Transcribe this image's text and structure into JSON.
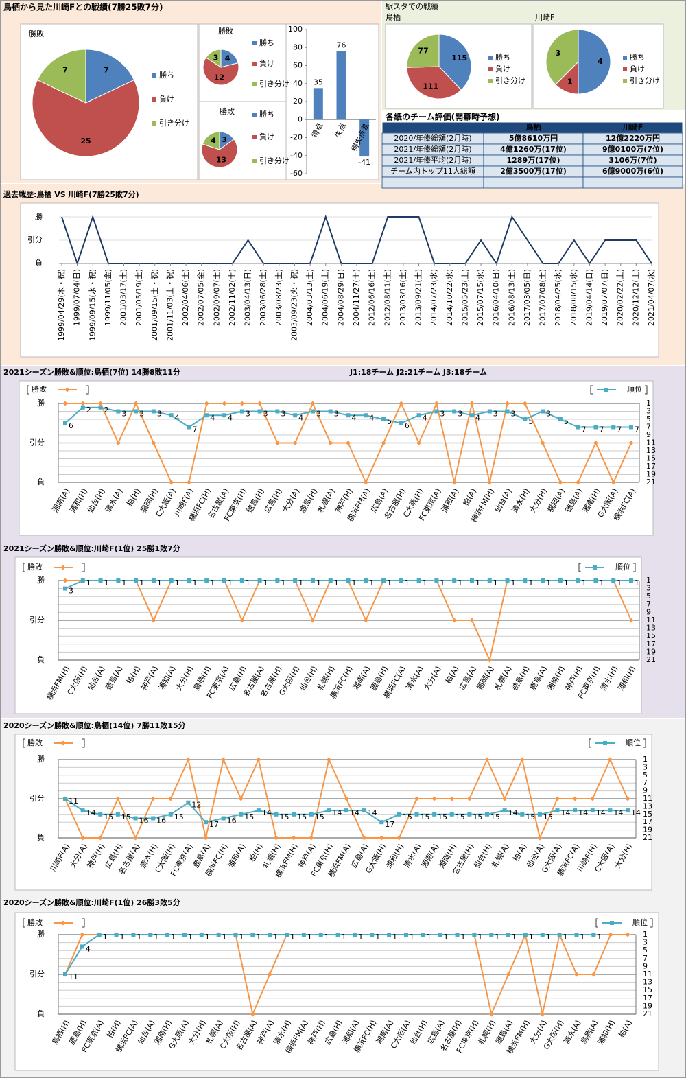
{
  "panels": {
    "head_to_head": "鳥栖から見た川崎Fとの戦績(7勝25敗7分)",
    "stadium": "駅スタでの戦績"
  },
  "table": {
    "title": "各紙のチーム評価(開幕時予想)",
    "header": [
      "鳥栖",
      "川崎F"
    ],
    "rows": [
      [
        "2020/年俸総額(2月時)",
        "5億8610万円",
        "12億2220万円"
      ],
      [
        "2021/年俸総額(2月時)",
        "4億1260万(17位)",
        "9億0100万(7位)"
      ],
      [
        "2021/年俸平均(2月時)",
        "1289万(17位)",
        "3106万(7位)"
      ],
      [
        "チーム内トップ11人総額",
        "2億3500万(17位)",
        "6億9000万(6位)"
      ]
    ]
  },
  "chart_data": [
    {
      "type": "pie",
      "title": "勝敗",
      "categories": [
        "勝ち",
        "負け",
        "引き分け"
      ],
      "values": [
        7,
        25,
        7
      ],
      "colors": [
        "#4f81bd",
        "#c0504d",
        "#9bbb59"
      ]
    },
    {
      "type": "pie",
      "title": "勝敗",
      "categories": [
        "勝ち",
        "負け",
        "引き分け"
      ],
      "values": [
        4,
        12,
        3
      ],
      "colors": [
        "#4f81bd",
        "#c0504d",
        "#9bbb59"
      ]
    },
    {
      "type": "pie",
      "title": "勝敗",
      "categories": [
        "勝ち",
        "負け",
        "引き分け"
      ],
      "values": [
        3,
        13,
        4
      ],
      "colors": [
        "#4f81bd",
        "#c0504d",
        "#9bbb59"
      ]
    },
    {
      "type": "bar",
      "categories": [
        "得点",
        "失点",
        "得失点差"
      ],
      "values": [
        35,
        76,
        -41
      ],
      "color": "#4f81bd",
      "ylim": [
        -60,
        100
      ],
      "yticks": [
        -60,
        -40,
        -20,
        0,
        20,
        40,
        60,
        80,
        100
      ]
    },
    {
      "type": "pie",
      "title": "鳥栖",
      "categories": [
        "勝ち",
        "負け",
        "引き分け"
      ],
      "values": [
        115,
        111,
        77
      ],
      "colors": [
        "#4f81bd",
        "#c0504d",
        "#9bbb59"
      ]
    },
    {
      "type": "pie",
      "title": "川崎F",
      "categories": [
        "勝ち",
        "負け",
        "引き分け"
      ],
      "values": [
        4,
        1,
        3
      ],
      "colors": [
        "#4f81bd",
        "#c0504d",
        "#9bbb59"
      ]
    },
    {
      "type": "line",
      "title": "過去戦歴:鳥栖 VS 川崎F(7勝25敗7分)",
      "categories": [
        "1999/04/29(木・祝)",
        "1999/07/04(日)",
        "1999/09/15(水・祝)",
        "1999/11/05(金)",
        "2001/03/17(土)",
        "2001/05/19(土)",
        "2001/09/15(土・祝)",
        "2001/11/03(土・祝)",
        "2002/04/06(土)",
        "2002/07/05(金)",
        "2002/09/07(土)",
        "2002/11/02(土)",
        "2003/04/13(日)",
        "2003/06/28(土)",
        "2003/08/23(土)",
        "2003/09/23(火・祝)",
        "2004/03/13(土)",
        "2004/06/19(土)",
        "2004/08/29(日)",
        "2004/11/27(土)",
        "2012/06/16(土)",
        "2012/08/11(土)",
        "2013/03/16(土)",
        "2013/09/21(土)",
        "2014/07/23(水)",
        "2014/10/22(水)",
        "2015/05/23(土)",
        "2015/07/15(水)",
        "2016/04/10(日)",
        "2016/08/13(土)",
        "2017/03/05(日)",
        "2017/07/08(土)",
        "2018/04/25(水)",
        "2018/08/15(水)",
        "2019/04/14(日)",
        "2019/07/07(日)",
        "2020/02/22(土)",
        "2020/12/12(土)",
        "2021/04/07(水)"
      ],
      "ylim": [
        0,
        2
      ],
      "yticks": [
        {
          "value": 0,
          "label": "負"
        },
        {
          "value": 1,
          "label": "引分"
        },
        {
          "value": 2,
          "label": "勝"
        }
      ],
      "color": "#1f3b63",
      "values": [
        2,
        0,
        2,
        0,
        0,
        0,
        0,
        0,
        0,
        0,
        0,
        0,
        1,
        0,
        0,
        0,
        0,
        2,
        0,
        0,
        0,
        2,
        2,
        2,
        0,
        0,
        0,
        1,
        0,
        2,
        1,
        0,
        0,
        1,
        0,
        1,
        1,
        1,
        0
      ]
    },
    {
      "type": "combo",
      "title": "2021シーズン勝敗&順位:鳥栖(7位) 14勝8敗11分",
      "subtitle": "J1:18チーム J2:21チーム J3:18チーム",
      "categories": [
        "湘南(A)",
        "浦和(H)",
        "仙台(H)",
        "清水(A)",
        "柏(H)",
        "福岡(H)",
        "C大阪(A)",
        "川崎F(A)",
        "横浜FC(H)",
        "名古屋(A)",
        "FC東京(H)",
        "徳島(H)",
        "広島(H)",
        "大分(A)",
        "鹿島(H)",
        "札幌(A)",
        "神戸(H)",
        "横浜FM(A)",
        "広島(A)",
        "名古屋(H)",
        "C大阪(H)",
        "FC東京(A)",
        "浦和(A)",
        "柏(A)",
        "横浜FM(H)",
        "仙台(A)",
        "清水(H)",
        "大分(H)",
        "福岡(A)",
        "徳島(A)",
        "湘南(H)",
        "G大阪(A)",
        "横浜FC(A)"
      ],
      "ylim": [
        0,
        2
      ],
      "yticks": [
        {
          "value": 0,
          "label": "負"
        },
        {
          "value": 1,
          "label": "引分"
        },
        {
          "value": 2,
          "label": "勝"
        }
      ],
      "y2lim": [
        21,
        1
      ],
      "y2ticks": [
        1,
        3,
        5,
        7,
        9,
        11,
        13,
        15,
        17,
        19,
        21
      ],
      "series": [
        {
          "name": "勝敗",
          "color": "#f79646",
          "values": [
            2,
            2,
            2,
            1,
            2,
            1,
            0,
            0,
            2,
            2,
            2,
            2,
            1,
            1,
            2,
            1,
            1,
            0,
            1,
            2,
            1,
            2,
            0,
            2,
            0,
            2,
            2,
            1,
            0,
            0,
            1,
            0,
            1
          ]
        },
        {
          "name": "順位",
          "color": "#4bacc6",
          "axis": "y2",
          "values": [
            6,
            2,
            2,
            3,
            3,
            3,
            4,
            7,
            4,
            4,
            3,
            3,
            3,
            4,
            3,
            3,
            4,
            4,
            5,
            6,
            4,
            3,
            3,
            4,
            3,
            3,
            5,
            3,
            5,
            7,
            7,
            7,
            7
          ]
        }
      ]
    },
    {
      "type": "combo",
      "title": "2021シーズン勝敗&順位:川崎F(1位) 25勝1敗7分",
      "categories": [
        "横浜FM(H)",
        "C大阪(H)",
        "仙台(A)",
        "徳島(A)",
        "柏(H)",
        "神戸(A)",
        "浦和(A)",
        "大分(H)",
        "鳥栖(H)",
        "FC東京(A)",
        "広島(H)",
        "名古屋(A)",
        "名古屋(H)",
        "G大阪(H)",
        "仙台(H)",
        "札幌(H)",
        "横浜FC(H)",
        "湘南(A)",
        "鹿島(H)",
        "横浜FC(A)",
        "清水(A)",
        "大分(A)",
        "柏(A)",
        "広島(A)",
        "福岡(A)",
        "札幌(A)",
        "徳島(H)",
        "鹿島(A)",
        "湘南(H)",
        "神戸(H)",
        "FC東京(H)",
        "清水(H)",
        "浦和(H)"
      ],
      "ylim": [
        0,
        2
      ],
      "yticks": [
        {
          "value": 0,
          "label": "負"
        },
        {
          "value": 1,
          "label": "引分"
        },
        {
          "value": 2,
          "label": "勝"
        }
      ],
      "y2lim": [
        21,
        1
      ],
      "y2ticks": [
        1,
        3,
        5,
        7,
        9,
        11,
        13,
        15,
        17,
        19,
        21
      ],
      "series": [
        {
          "name": "勝敗",
          "color": "#f79646",
          "values": [
            2,
            2,
            2,
            2,
            2,
            1,
            2,
            2,
            2,
            2,
            1,
            2,
            2,
            2,
            1,
            2,
            2,
            1,
            2,
            2,
            2,
            2,
            1,
            1,
            0,
            2,
            2,
            2,
            2,
            2,
            2,
            2,
            1
          ]
        },
        {
          "name": "順位",
          "color": "#4bacc6",
          "axis": "y2",
          "values": [
            3,
            1,
            1,
            1,
            1,
            1,
            1,
            1,
            1,
            1,
            1,
            1,
            1,
            1,
            1,
            1,
            1,
            1,
            1,
            1,
            1,
            1,
            1,
            1,
            1,
            1,
            1,
            1,
            1,
            1,
            1,
            1,
            1
          ]
        }
      ]
    },
    {
      "type": "combo",
      "title": "2020シーズン勝敗&順位:鳥栖(14位) 7勝11敗15分",
      "categories": [
        "川崎F(A)",
        "大分(A)",
        "神戸(H)",
        "広島(H)",
        "名古屋(A)",
        "清水(H)",
        "C大阪(H)",
        "FC東京(A)",
        "鹿島(A)",
        "横浜FC(H)",
        "浦和(A)",
        "柏(H)",
        "札幌(H)",
        "横浜FM(H)",
        "神戸(A)",
        "FC東京(H)",
        "横浜FM(A)",
        "広島(A)",
        "G大阪(H)",
        "浦和(H)",
        "清水(A)",
        "湘南(A)",
        "湘南(H)",
        "名古屋(H)",
        "仙台(H)",
        "札幌(A)",
        "柏(A)",
        "仙台(A)",
        "G大阪(A)",
        "横浜FC(A)",
        "川崎F(H)",
        "C大阪(A)",
        "大分(H)"
      ],
      "ylim": [
        0,
        2
      ],
      "yticks": [
        {
          "value": 0,
          "label": "負"
        },
        {
          "value": 1,
          "label": "引分"
        },
        {
          "value": 2,
          "label": "勝"
        }
      ],
      "y2lim": [
        21,
        1
      ],
      "y2ticks": [
        1,
        3,
        5,
        7,
        9,
        11,
        13,
        15,
        17,
        19,
        21
      ],
      "series": [
        {
          "name": "勝敗",
          "color": "#f79646",
          "values": [
            1,
            0,
            0,
            1,
            0,
            1,
            1,
            2,
            0,
            2,
            1,
            2,
            0,
            0,
            0,
            2,
            1,
            0,
            0,
            0,
            1,
            1,
            1,
            1,
            2,
            1,
            2,
            0,
            1,
            1,
            1,
            2,
            1
          ]
        },
        {
          "name": "順位",
          "color": "#4bacc6",
          "axis": "y2",
          "values": [
            11,
            14,
            15,
            15,
            16,
            16,
            15,
            12,
            17,
            16,
            15,
            14,
            15,
            15,
            15,
            14,
            14,
            14,
            17,
            15,
            15,
            15,
            15,
            15,
            15,
            14,
            15,
            15,
            14,
            14,
            14,
            14,
            14
          ]
        }
      ]
    },
    {
      "type": "combo",
      "title": "2020シーズン勝敗&順位:川崎F(1位) 26勝3敗5分",
      "categories": [
        "鳥栖(H)",
        "鹿島(H)",
        "FC東京(A)",
        "柏(H)",
        "横浜FC(A)",
        "仙台(A)",
        "湘南(H)",
        "G大阪(A)",
        "大分(H)",
        "札幌(A)",
        "C大阪(H)",
        "名古屋(A)",
        "神戸(A)",
        "清水(H)",
        "横浜FM(A)",
        "神戸(H)",
        "広島(H)",
        "浦和(A)",
        "横浜FC(H)",
        "湘南(A)",
        "C大阪(A)",
        "仙台(H)",
        "広島(A)",
        "名古屋(H)",
        "FC東京(H)",
        "札幌(H)",
        "鹿島(A)",
        "横浜FM(H)",
        "大分(A)",
        "G大阪(H)",
        "清水(A)",
        "鳥栖(A)",
        "浦和(H)",
        "柏(A)"
      ],
      "ylim": [
        0,
        2
      ],
      "yticks": [
        {
          "value": 0,
          "label": "負"
        },
        {
          "value": 1,
          "label": "引分"
        },
        {
          "value": 2,
          "label": "勝"
        }
      ],
      "y2lim": [
        21,
        1
      ],
      "y2ticks": [
        1,
        3,
        5,
        7,
        9,
        11,
        13,
        15,
        17,
        19,
        21
      ],
      "series": [
        {
          "name": "勝敗",
          "color": "#f79646",
          "values": [
            1,
            2,
            2,
            2,
            2,
            2,
            2,
            2,
            2,
            2,
            2,
            0,
            1,
            2,
            2,
            2,
            2,
            2,
            2,
            2,
            2,
            2,
            2,
            2,
            2,
            0,
            1,
            2,
            0,
            2,
            1,
            1,
            2,
            2
          ]
        },
        {
          "name": "順位",
          "color": "#4bacc6",
          "axis": "y2",
          "values": [
            11,
            4,
            1,
            1,
            1,
            1,
            1,
            1,
            1,
            1,
            1,
            1,
            1,
            1,
            1,
            1,
            1,
            1,
            1,
            1,
            1,
            1,
            1,
            1,
            1,
            1,
            1,
            1,
            1,
            1,
            1,
            1,
            null,
            null
          ]
        }
      ]
    }
  ]
}
